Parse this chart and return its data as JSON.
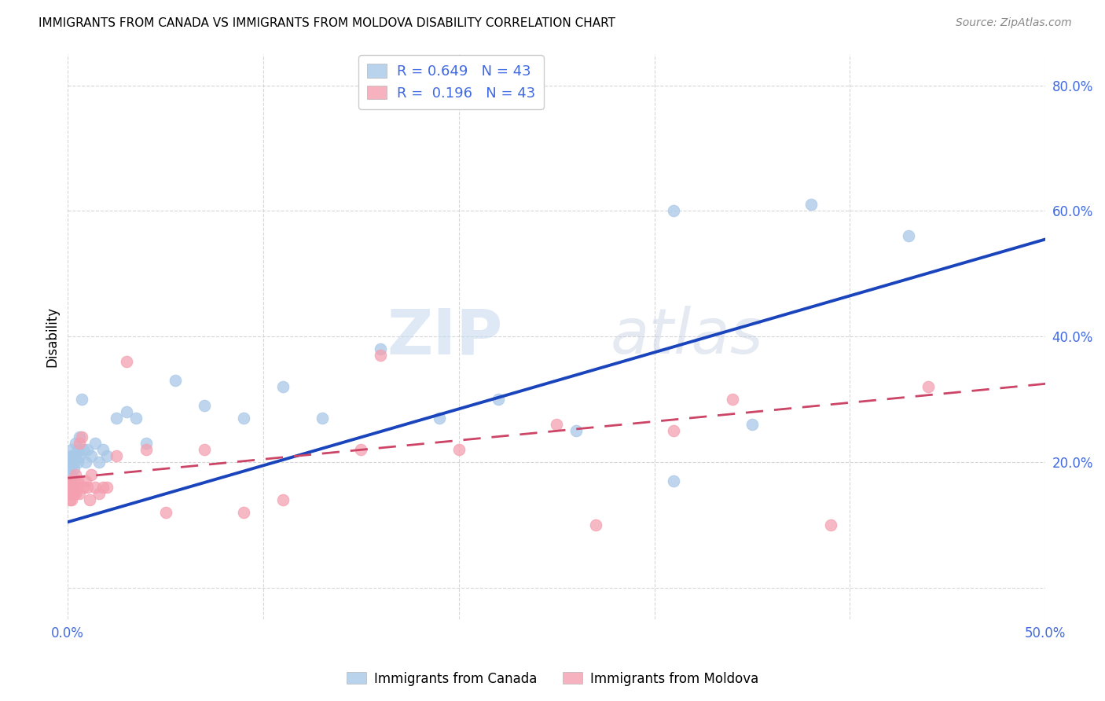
{
  "title": "IMMIGRANTS FROM CANADA VS IMMIGRANTS FROM MOLDOVA DISABILITY CORRELATION CHART",
  "source": "Source: ZipAtlas.com",
  "tick_color": "#4169E1",
  "ylabel": "Disability",
  "xlim": [
    0.0,
    0.5
  ],
  "ylim": [
    -0.05,
    0.85
  ],
  "canada_R": 0.649,
  "canada_N": 43,
  "moldova_R": 0.196,
  "moldova_N": 43,
  "canada_color": "#a8c8e8",
  "moldova_color": "#f4a0b0",
  "canada_line_color": "#1a44bb",
  "moldova_line_color": "#cc4466",
  "background_color": "#ffffff",
  "grid_color": "#cccccc",
  "watermark_zip": "ZIP",
  "watermark_atlas": "atlas",
  "canada_x": [
    0.001,
    0.001,
    0.001,
    0.002,
    0.002,
    0.002,
    0.002,
    0.003,
    0.003,
    0.003,
    0.004,
    0.004,
    0.005,
    0.005,
    0.006,
    0.006,
    0.007,
    0.008,
    0.009,
    0.01,
    0.012,
    0.014,
    0.016,
    0.018,
    0.02,
    0.025,
    0.03,
    0.035,
    0.04,
    0.055,
    0.07,
    0.09,
    0.11,
    0.13,
    0.16,
    0.19,
    0.22,
    0.26,
    0.31,
    0.35,
    0.31,
    0.38,
    0.43
  ],
  "canada_y": [
    0.17,
    0.19,
    0.2,
    0.18,
    0.2,
    0.21,
    0.22,
    0.2,
    0.19,
    0.21,
    0.21,
    0.23,
    0.2,
    0.22,
    0.21,
    0.24,
    0.3,
    0.22,
    0.2,
    0.22,
    0.21,
    0.23,
    0.2,
    0.22,
    0.21,
    0.27,
    0.28,
    0.27,
    0.23,
    0.33,
    0.29,
    0.27,
    0.32,
    0.27,
    0.38,
    0.27,
    0.3,
    0.25,
    0.17,
    0.26,
    0.6,
    0.61,
    0.56
  ],
  "moldova_x": [
    0.001,
    0.001,
    0.001,
    0.001,
    0.002,
    0.002,
    0.002,
    0.002,
    0.003,
    0.003,
    0.003,
    0.004,
    0.004,
    0.005,
    0.005,
    0.006,
    0.006,
    0.007,
    0.008,
    0.009,
    0.01,
    0.011,
    0.012,
    0.014,
    0.016,
    0.018,
    0.02,
    0.025,
    0.03,
    0.04,
    0.05,
    0.07,
    0.09,
    0.11,
    0.15,
    0.16,
    0.2,
    0.25,
    0.27,
    0.31,
    0.34,
    0.39,
    0.44
  ],
  "moldova_y": [
    0.14,
    0.15,
    0.16,
    0.17,
    0.14,
    0.15,
    0.16,
    0.17,
    0.15,
    0.16,
    0.17,
    0.15,
    0.18,
    0.16,
    0.17,
    0.15,
    0.23,
    0.24,
    0.16,
    0.17,
    0.16,
    0.14,
    0.18,
    0.16,
    0.15,
    0.16,
    0.16,
    0.21,
    0.36,
    0.22,
    0.12,
    0.22,
    0.12,
    0.14,
    0.22,
    0.37,
    0.22,
    0.26,
    0.1,
    0.25,
    0.3,
    0.1,
    0.32
  ],
  "canada_line_x": [
    0.0,
    0.5
  ],
  "canada_line_y": [
    0.105,
    0.555
  ],
  "moldova_line_x": [
    0.0,
    0.5
  ],
  "moldova_line_y": [
    0.175,
    0.325
  ]
}
